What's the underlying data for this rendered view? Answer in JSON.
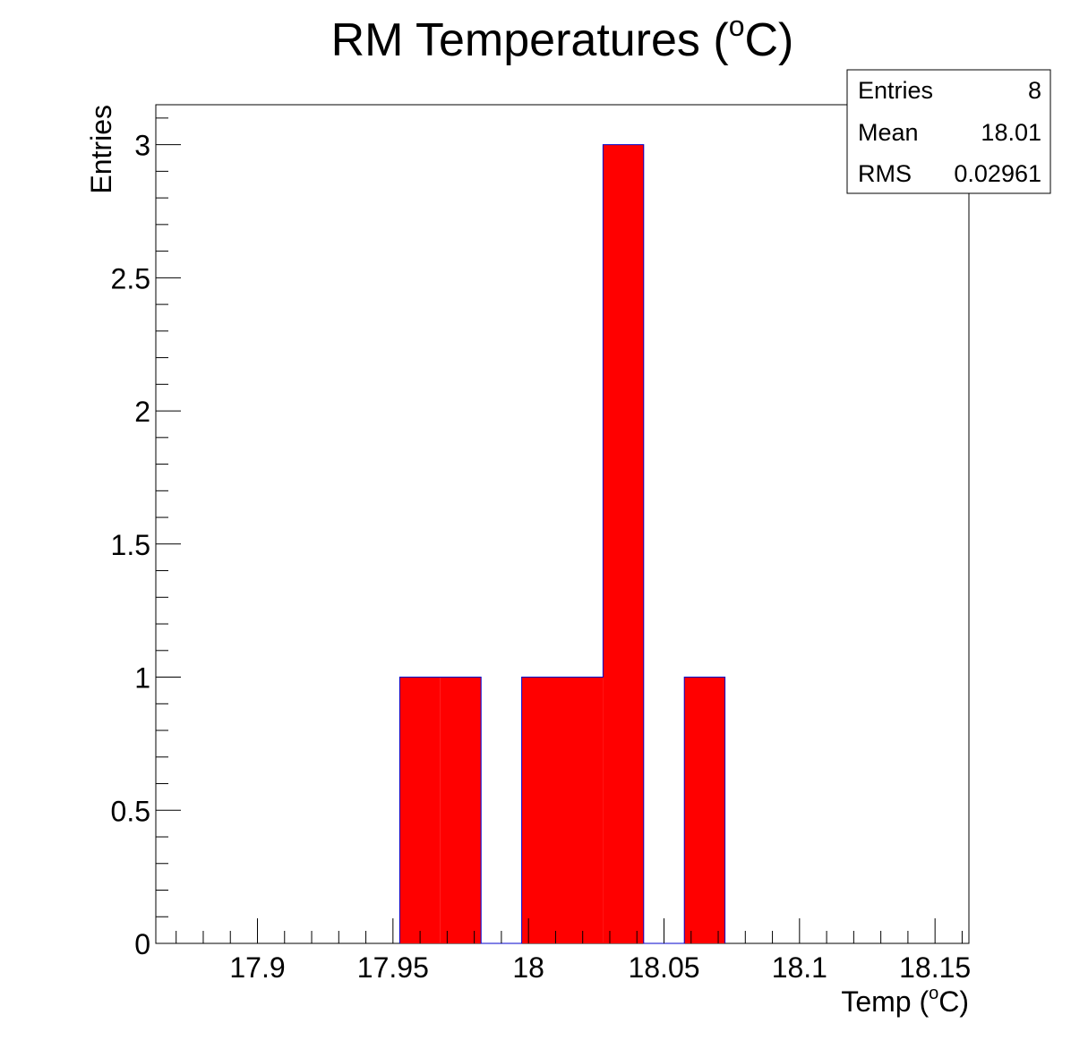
{
  "chart_data": {
    "type": "bar",
    "title": "RM Temperatures",
    "title_unit": "C",
    "title_superscript": "o",
    "xlabel": "Temp",
    "xlabel_unit": "C",
    "xlabel_superscript": "o",
    "ylabel": "Entries",
    "xlim": [
      17.8625,
      18.1625
    ],
    "ylim": [
      0,
      3.15
    ],
    "x_ticks": [
      "17.9",
      "17.95",
      "18",
      "18.05",
      "18.1",
      "18.15"
    ],
    "x_tick_values": [
      17.9,
      17.95,
      18.0,
      18.05,
      18.1,
      18.15
    ],
    "y_ticks": [
      "0",
      "0.5",
      "1",
      "1.5",
      "2",
      "2.5",
      "3"
    ],
    "y_tick_values": [
      0,
      0.5,
      1,
      1.5,
      2,
      2.5,
      3
    ],
    "bin_edges": [
      17.9525,
      17.9675,
      17.9825,
      17.9975,
      18.0125,
      18.0275,
      18.0425,
      18.0575,
      18.0725
    ],
    "bins": [
      {
        "x0": 17.9525,
        "x1": 17.9675,
        "value": 1
      },
      {
        "x0": 17.9675,
        "x1": 17.9825,
        "value": 1
      },
      {
        "x0": 17.9825,
        "x1": 17.9975,
        "value": 0
      },
      {
        "x0": 17.9975,
        "x1": 18.0125,
        "value": 1
      },
      {
        "x0": 18.0125,
        "x1": 18.0275,
        "value": 1
      },
      {
        "x0": 18.0275,
        "x1": 18.0425,
        "value": 3
      },
      {
        "x0": 18.0425,
        "x1": 18.0575,
        "value": 0
      },
      {
        "x0": 18.0575,
        "x1": 18.0725,
        "value": 1
      }
    ],
    "fill_color": "#ff0000",
    "edge_color": "#0000cc",
    "grid": false,
    "legend": "none",
    "stats_box": {
      "position": "top-right",
      "rows": [
        {
          "label": "Entries",
          "value": "8"
        },
        {
          "label": "Mean",
          "value": "18.01"
        },
        {
          "label": "RMS",
          "value": "0.02961"
        }
      ]
    }
  }
}
